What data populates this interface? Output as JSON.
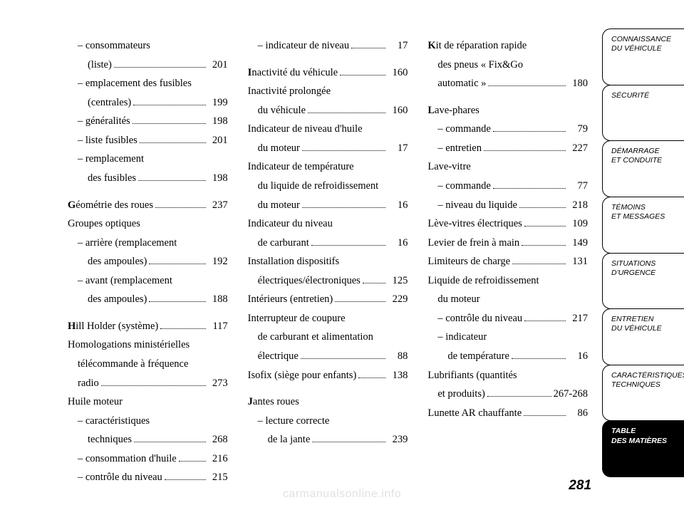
{
  "page_number": "281",
  "watermark": "carmanualsonline.info",
  "columns": [
    [
      {
        "kind": "line",
        "indent": 1,
        "text": "– consommateurs"
      },
      {
        "kind": "dotline",
        "indent": 2,
        "text": "(liste)",
        "page": "201"
      },
      {
        "kind": "line",
        "indent": 1,
        "text": "– emplacement des fusibles"
      },
      {
        "kind": "dotline",
        "indent": 2,
        "text": "(centrales)",
        "page": "199"
      },
      {
        "kind": "dotline",
        "indent": 1,
        "text": "– généralités",
        "page": "198"
      },
      {
        "kind": "dotline",
        "indent": 1,
        "text": "– liste fusibles",
        "page": "201"
      },
      {
        "kind": "line",
        "indent": 1,
        "text": "– remplacement"
      },
      {
        "kind": "dotline",
        "indent": 2,
        "text": "des fusibles",
        "page": "198"
      },
      {
        "kind": "gap"
      },
      {
        "kind": "dotline",
        "indent": 0,
        "bold": "G",
        "text": "éométrie des roues",
        "page": "237"
      },
      {
        "kind": "line",
        "indent": 0,
        "text": "Groupes optiques"
      },
      {
        "kind": "line",
        "indent": 1,
        "text": "– arrière (remplacement"
      },
      {
        "kind": "dotline",
        "indent": 2,
        "text": "des ampoules)",
        "page": "192"
      },
      {
        "kind": "line",
        "indent": 1,
        "text": "– avant (remplacement"
      },
      {
        "kind": "dotline",
        "indent": 2,
        "text": "des ampoules)",
        "page": "188"
      },
      {
        "kind": "gap"
      },
      {
        "kind": "dotline",
        "indent": 0,
        "bold": "H",
        "text": "ill Holder (système)",
        "page": "117"
      },
      {
        "kind": "line",
        "indent": 0,
        "text": "Homologations ministérielles"
      },
      {
        "kind": "line",
        "indent": 1,
        "text": "télécommande à fréquence"
      },
      {
        "kind": "dotline",
        "indent": 1,
        "text": "radio",
        "page": "273"
      },
      {
        "kind": "line",
        "indent": 0,
        "text": "Huile moteur"
      },
      {
        "kind": "line",
        "indent": 1,
        "text": "– caractéristiques"
      },
      {
        "kind": "dotline",
        "indent": 2,
        "text": "techniques",
        "page": "268"
      },
      {
        "kind": "dotline",
        "indent": 1,
        "text": "– consommation d'huile",
        "page": "216"
      },
      {
        "kind": "dotline",
        "indent": 1,
        "text": "– contrôle du niveau",
        "page": "215"
      }
    ],
    [
      {
        "kind": "dotline",
        "indent": 1,
        "text": "– indicateur de niveau",
        "page": "17"
      },
      {
        "kind": "gap"
      },
      {
        "kind": "dotline",
        "indent": 0,
        "bold": "I",
        "text": "nactivité du véhicule",
        "page": "160"
      },
      {
        "kind": "line",
        "indent": 0,
        "text": "Inactivité prolongée"
      },
      {
        "kind": "dotline",
        "indent": 1,
        "text": "du véhicule",
        "page": "160"
      },
      {
        "kind": "line",
        "indent": 0,
        "text": "Indicateur de niveau d'huile"
      },
      {
        "kind": "dotline",
        "indent": 1,
        "text": "du moteur",
        "page": "17"
      },
      {
        "kind": "line",
        "indent": 0,
        "text": "Indicateur de température"
      },
      {
        "kind": "line",
        "indent": 1,
        "text": "du liquide de refroidissement"
      },
      {
        "kind": "dotline",
        "indent": 1,
        "text": "du moteur",
        "page": "16"
      },
      {
        "kind": "line",
        "indent": 0,
        "text": "Indicateur du niveau"
      },
      {
        "kind": "dotline",
        "indent": 1,
        "text": "de carburant",
        "page": "16"
      },
      {
        "kind": "line",
        "indent": 0,
        "text": "Installation dispositifs"
      },
      {
        "kind": "dotline",
        "indent": 1,
        "text": "électriques/électroniques",
        "page": "125"
      },
      {
        "kind": "dotline",
        "indent": 0,
        "text": "Intérieurs (entretien)",
        "page": "229"
      },
      {
        "kind": "line",
        "indent": 0,
        "text": "Interrupteur de coupure"
      },
      {
        "kind": "line",
        "indent": 1,
        "text": "de carburant et alimentation"
      },
      {
        "kind": "dotline",
        "indent": 1,
        "text": "électrique",
        "page": "88"
      },
      {
        "kind": "dotline",
        "indent": 0,
        "text": "Isofix (siège pour enfants)",
        "page": "138"
      },
      {
        "kind": "gap"
      },
      {
        "kind": "line",
        "indent": 0,
        "bold": "J",
        "text": "antes roues"
      },
      {
        "kind": "line",
        "indent": 1,
        "text": "– lecture correcte"
      },
      {
        "kind": "dotline",
        "indent": 2,
        "text": "de la jante",
        "page": "239"
      }
    ],
    [
      {
        "kind": "line",
        "indent": 0,
        "bold": "K",
        "text": "it de réparation rapide"
      },
      {
        "kind": "line",
        "indent": 1,
        "text": "des pneus « Fix&Go"
      },
      {
        "kind": "dotline",
        "indent": 1,
        "text": "automatic »",
        "page": "180"
      },
      {
        "kind": "gap"
      },
      {
        "kind": "line",
        "indent": 0,
        "bold": "L",
        "text": "ave-phares"
      },
      {
        "kind": "dotline",
        "indent": 1,
        "text": "– commande",
        "page": "79"
      },
      {
        "kind": "dotline",
        "indent": 1,
        "text": "– entretien",
        "page": "227"
      },
      {
        "kind": "line",
        "indent": 0,
        "text": "Lave-vitre"
      },
      {
        "kind": "dotline",
        "indent": 1,
        "text": "– commande",
        "page": "77"
      },
      {
        "kind": "dotline",
        "indent": 1,
        "text": "– niveau du liquide",
        "page": "218"
      },
      {
        "kind": "dotline",
        "indent": 0,
        "text": "Lève-vitres électriques",
        "page": "109"
      },
      {
        "kind": "dotline",
        "indent": 0,
        "text": "Levier de frein à main",
        "page": "149"
      },
      {
        "kind": "dotline",
        "indent": 0,
        "text": "Limiteurs de charge",
        "page": "131"
      },
      {
        "kind": "line",
        "indent": 0,
        "text": "Liquide de refroidissement"
      },
      {
        "kind": "line",
        "indent": 1,
        "text": "du moteur"
      },
      {
        "kind": "dotline",
        "indent": 1,
        "text": "– contrôle du niveau",
        "page": "217"
      },
      {
        "kind": "line",
        "indent": 1,
        "text": "– indicateur"
      },
      {
        "kind": "dotline",
        "indent": 2,
        "text": "de température",
        "page": "16"
      },
      {
        "kind": "line",
        "indent": 0,
        "text": "Lubrifiants (quantités"
      },
      {
        "kind": "dotline",
        "indent": 1,
        "text": "et produits)",
        "page": "267-268"
      },
      {
        "kind": "dotline",
        "indent": 0,
        "text": "Lunette AR chauffante",
        "page": "86"
      }
    ]
  ],
  "tabs": [
    {
      "l1": "CONNAISSANCE",
      "l2": "DU VÉHICULE",
      "active": false
    },
    {
      "l1": "SÉCURITÉ",
      "l2": "",
      "active": false
    },
    {
      "l1": "DÉMARRAGE",
      "l2": "ET CONDUITE",
      "active": false
    },
    {
      "l1": "TÉMOINS",
      "l2": "ET MESSAGES",
      "active": false
    },
    {
      "l1": "SITUATIONS",
      "l2": "D'URGENCE",
      "active": false
    },
    {
      "l1": "ENTRETIEN",
      "l2": "DU VÉHICULE",
      "active": false
    },
    {
      "l1": "CARACTÉRISTIQUES",
      "l2": "TECHNIQUES",
      "active": false
    },
    {
      "l1": "TABLE",
      "l2": "DES MATIÈRES",
      "active": true
    }
  ]
}
